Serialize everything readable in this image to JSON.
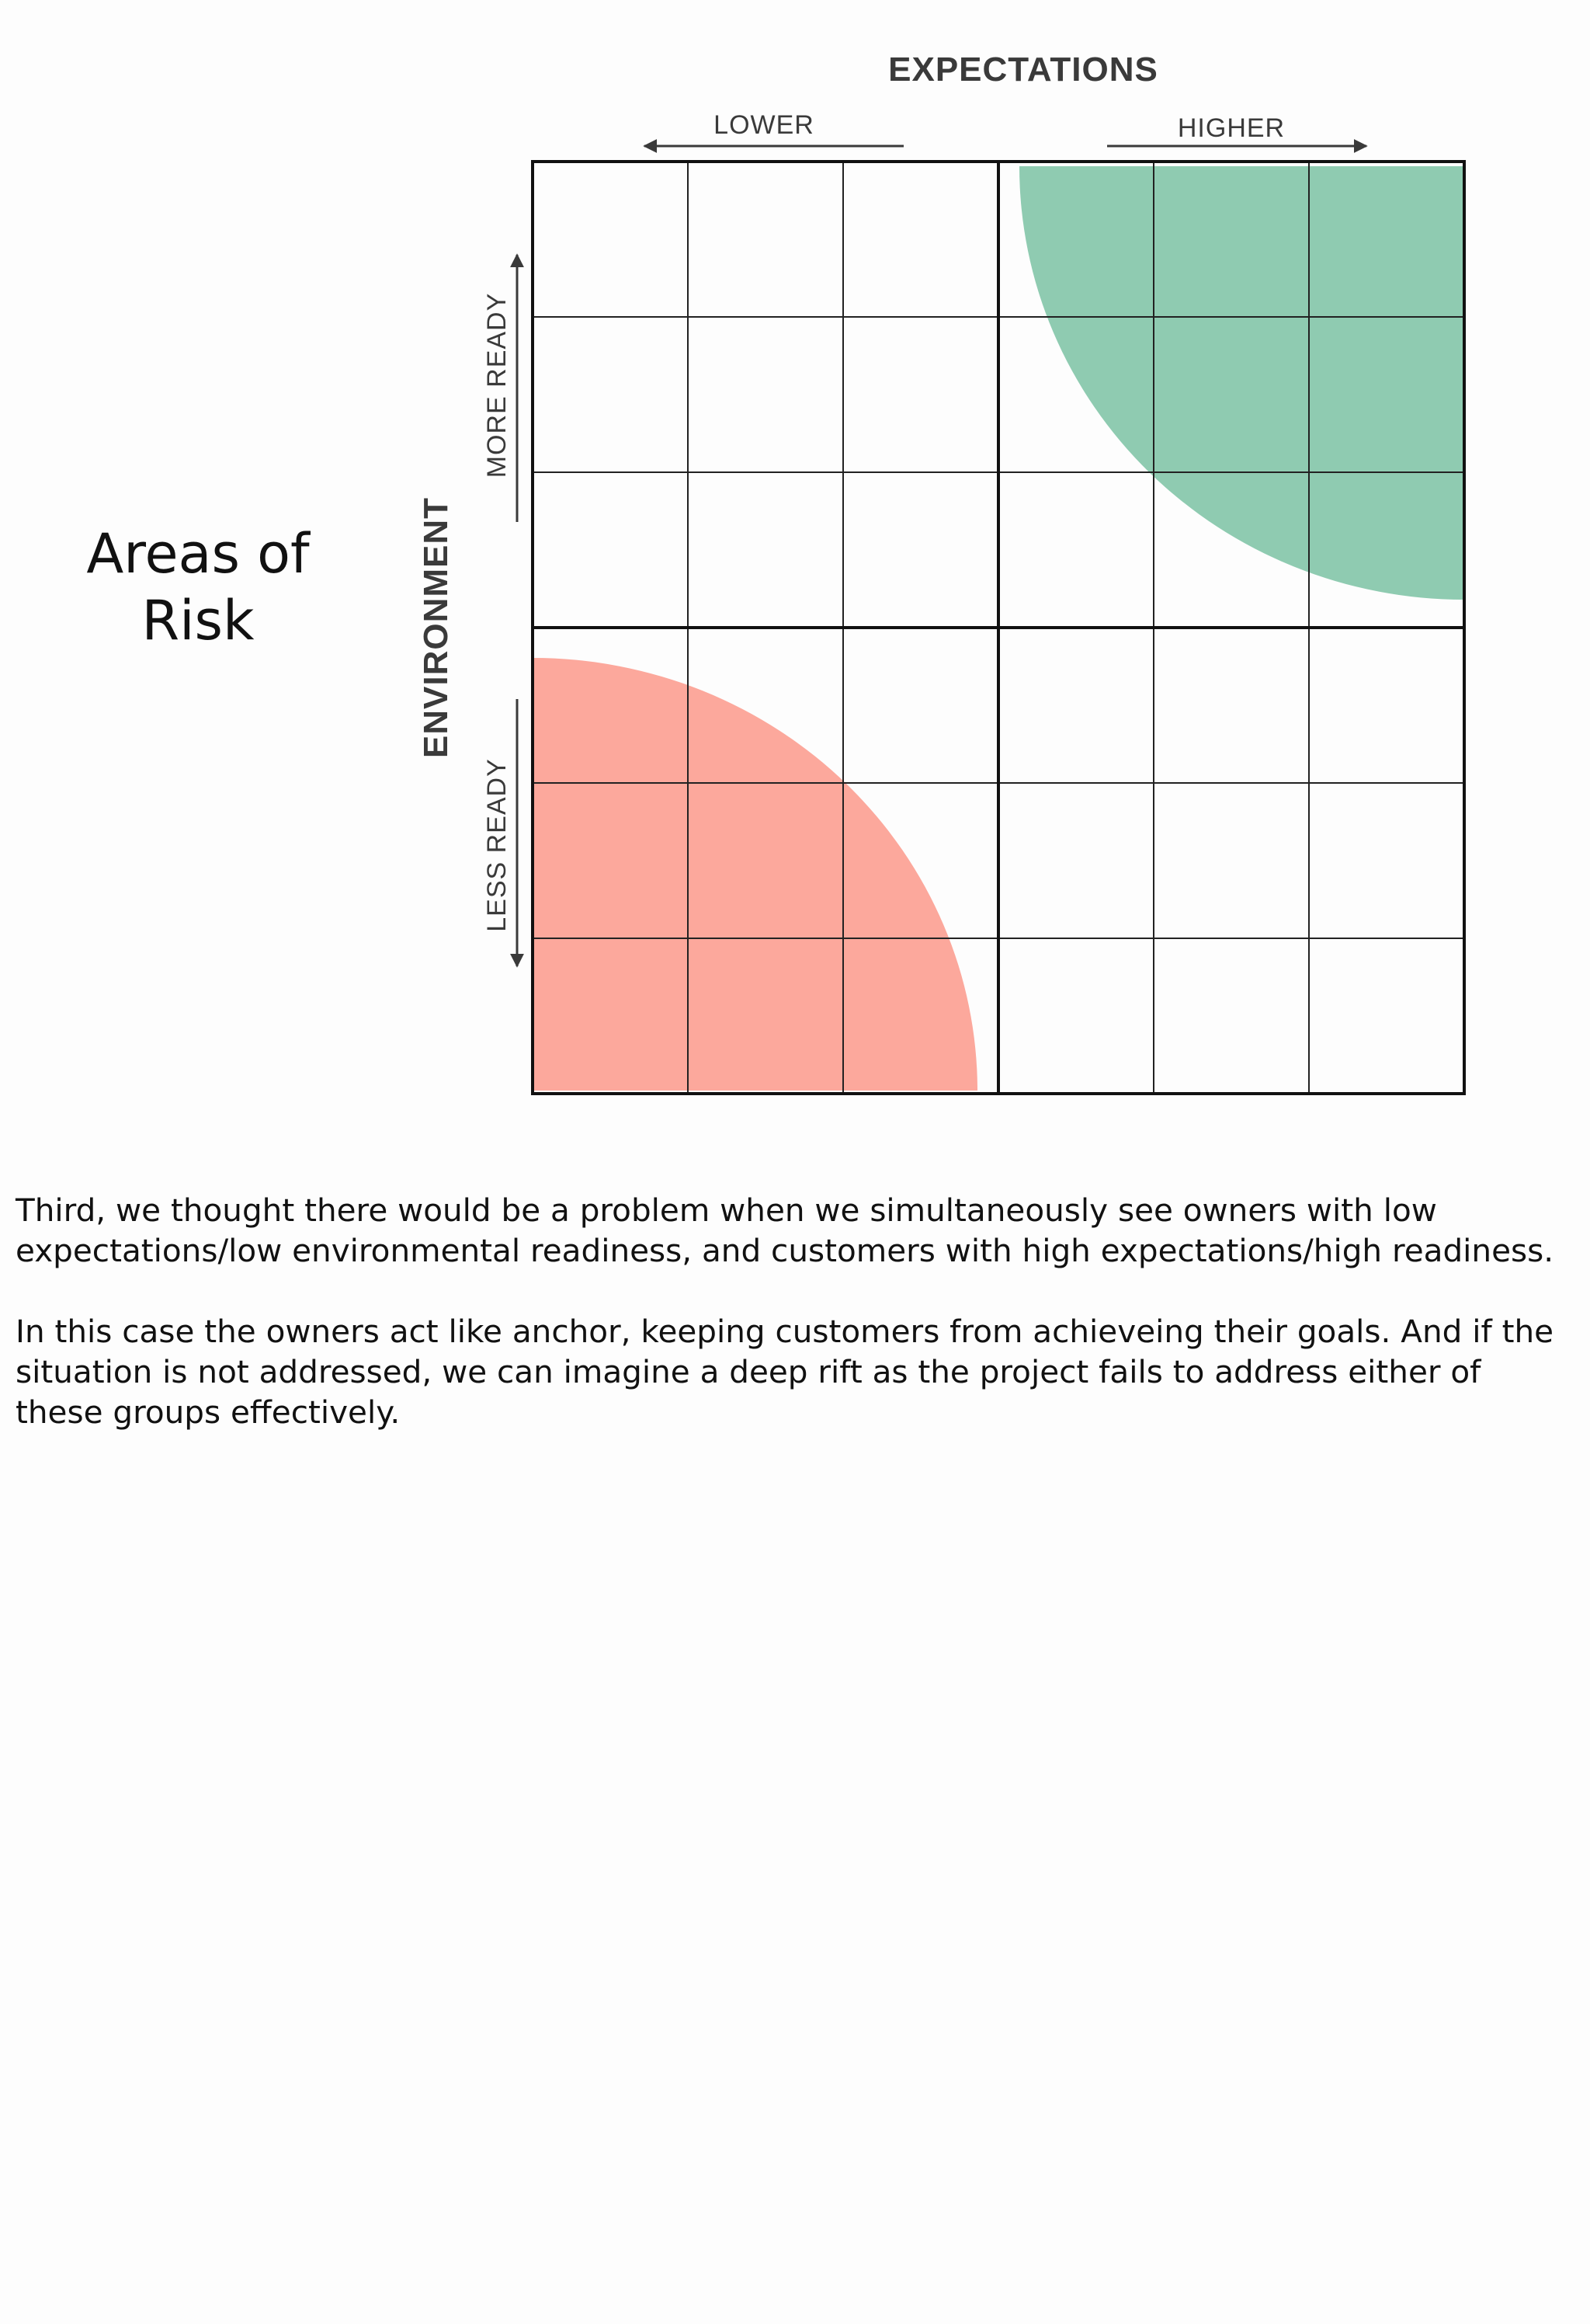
{
  "slide": {
    "title_line1": "Areas of",
    "title_line2": "Risk"
  },
  "diagram": {
    "x_axis_title": "EXPECTATIONS",
    "x_low_label": "LOWER",
    "x_high_label": "HIGHER",
    "y_axis_title": "ENVIRONMENT",
    "y_high_label": "MORE READY",
    "y_low_label": "LESS READY",
    "grid_rows": 6,
    "grid_cols": 6,
    "regions": [
      {
        "quadrant": "higher-expectations-more-ready",
        "color": "#8fcbb1"
      },
      {
        "quadrant": "lower-expectations-less-ready",
        "color": "#fca89c"
      }
    ]
  },
  "notes": {
    "paragraph1": "Third, we thought there would be a problem when we simultaneously see owners with low expectations/low environmental readiness, and customers with high expectations/high readiness.",
    "paragraph2": "In this case the owners act like anchor, keeping customers from achieveing their goals.  And if the situation is not addressed, we can imagine a deep rift as the project fails to address either of these groups effectively."
  }
}
